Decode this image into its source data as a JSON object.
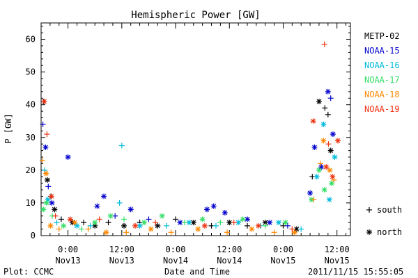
{
  "chart_data": {
    "type": "scatter",
    "title": "Hemispheric Power [GW]",
    "ylabel": "P [GW]",
    "xlabel": "Date and Time",
    "footer_left": "Plot: CCMC",
    "footer_right": "2011/11/15 15:55:05",
    "ylim": [
      0,
      65
    ],
    "yticks": [
      "0",
      "10",
      "20",
      "30",
      "40",
      "50",
      "60"
    ],
    "xlim": [
      -6,
      63
    ],
    "xticks": [
      {
        "t": 0,
        "top": "0:00",
        "bottom": "Nov13"
      },
      {
        "t": 12,
        "top": "12:00",
        "bottom": "Nov13"
      },
      {
        "t": 24,
        "top": "0:00",
        "bottom": "Nov14"
      },
      {
        "t": 36,
        "top": "12:00",
        "bottom": "Nov14"
      },
      {
        "t": 48,
        "top": "0:00",
        "bottom": "Nov15"
      },
      {
        "t": 60,
        "top": "12:00",
        "bottom": "Nov15"
      }
    ],
    "x_unit": "hours since 2011-11-13 00:00 UT",
    "marker_legend": [
      {
        "symbol": "+",
        "label": "south"
      },
      {
        "symbol": "*",
        "label": "north"
      }
    ],
    "series": [
      {
        "name": "METP-02",
        "color": "#000000",
        "points": [
          {
            "x": -5.4,
            "y": 41,
            "m": "+"
          },
          {
            "x": -4.6,
            "y": 17,
            "m": "*"
          },
          {
            "x": -3.8,
            "y": 12,
            "m": "+"
          },
          {
            "x": -3.0,
            "y": 8,
            "m": "*"
          },
          {
            "x": -1.5,
            "y": 5,
            "m": "+"
          },
          {
            "x": 1.0,
            "y": 4,
            "m": "*"
          },
          {
            "x": 3.5,
            "y": 4,
            "m": "+"
          },
          {
            "x": 6.0,
            "y": 3,
            "m": "*"
          },
          {
            "x": 9.0,
            "y": 4,
            "m": "+"
          },
          {
            "x": 12.5,
            "y": 3,
            "m": "*"
          },
          {
            "x": 16.0,
            "y": 4,
            "m": "+"
          },
          {
            "x": 20.0,
            "y": 3,
            "m": "*"
          },
          {
            "x": 24.0,
            "y": 5,
            "m": "+"
          },
          {
            "x": 28.0,
            "y": 4,
            "m": "*"
          },
          {
            "x": 32.0,
            "y": 3,
            "m": "+"
          },
          {
            "x": 36.0,
            "y": 4,
            "m": "*"
          },
          {
            "x": 40.0,
            "y": 3,
            "m": "+"
          },
          {
            "x": 44.0,
            "y": 4,
            "m": "*"
          },
          {
            "x": 48.0,
            "y": 3,
            "m": "+"
          },
          {
            "x": 51.0,
            "y": 2,
            "m": "*"
          },
          {
            "x": 54.5,
            "y": 18,
            "m": "+"
          },
          {
            "x": 56.0,
            "y": 41,
            "m": "*"
          },
          {
            "x": 57.3,
            "y": 39,
            "m": "+"
          },
          {
            "x": 58.0,
            "y": 37,
            "m": "+"
          },
          {
            "x": 58.6,
            "y": 26,
            "m": "*"
          }
        ]
      },
      {
        "name": "NOAA-15",
        "color": "#0000cc",
        "points": [
          {
            "x": -5.6,
            "y": 34,
            "m": "+"
          },
          {
            "x": -5.0,
            "y": 27,
            "m": "*"
          },
          {
            "x": -4.4,
            "y": 15,
            "m": "+"
          },
          {
            "x": -3.6,
            "y": 10,
            "m": "*"
          },
          {
            "x": 0.0,
            "y": 24,
            "m": "*"
          },
          {
            "x": 6.5,
            "y": 9,
            "m": "*"
          },
          {
            "x": 8.0,
            "y": 12,
            "m": "*"
          },
          {
            "x": 10.5,
            "y": 6,
            "m": "+"
          },
          {
            "x": 14.0,
            "y": 8,
            "m": "*"
          },
          {
            "x": 18.0,
            "y": 5,
            "m": "+"
          },
          {
            "x": 25.0,
            "y": 4,
            "m": "*"
          },
          {
            "x": 31.0,
            "y": 8,
            "m": "*"
          },
          {
            "x": 32.5,
            "y": 9,
            "m": "*"
          },
          {
            "x": 35.0,
            "y": 7,
            "m": "*"
          },
          {
            "x": 40.0,
            "y": 5,
            "m": "*"
          },
          {
            "x": 45.0,
            "y": 4,
            "m": "*"
          },
          {
            "x": 49.0,
            "y": 3,
            "m": "+"
          },
          {
            "x": 54.0,
            "y": 13,
            "m": "*"
          },
          {
            "x": 55.0,
            "y": 27,
            "m": "*"
          },
          {
            "x": 56.5,
            "y": 21,
            "m": "*"
          },
          {
            "x": 58.0,
            "y": 44,
            "m": "*"
          },
          {
            "x": 58.6,
            "y": 42,
            "m": "+"
          },
          {
            "x": 59.1,
            "y": 31,
            "m": "*"
          }
        ]
      },
      {
        "name": "NOAA-16",
        "color": "#00bbdd",
        "points": [
          {
            "x": -5.2,
            "y": 20,
            "m": "+"
          },
          {
            "x": -4.5,
            "y": 11,
            "m": "*"
          },
          {
            "x": -2.5,
            "y": 4,
            "m": "+"
          },
          {
            "x": 2.0,
            "y": 3,
            "m": "*"
          },
          {
            "x": 5.0,
            "y": 3,
            "m": "+"
          },
          {
            "x": 12.0,
            "y": 27.5,
            "m": "+"
          },
          {
            "x": 11.5,
            "y": 10,
            "m": "+"
          },
          {
            "x": 16.0,
            "y": 3,
            "m": "*"
          },
          {
            "x": 22.0,
            "y": 3,
            "m": "+"
          },
          {
            "x": 27.0,
            "y": 4,
            "m": "*"
          },
          {
            "x": 33.0,
            "y": 3,
            "m": "+"
          },
          {
            "x": 38.0,
            "y": 4,
            "m": "*"
          },
          {
            "x": 43.0,
            "y": 3,
            "m": "+"
          },
          {
            "x": 47.0,
            "y": 4,
            "m": "*"
          },
          {
            "x": 52.0,
            "y": 2,
            "m": "+"
          },
          {
            "x": 55.5,
            "y": 18,
            "m": "*"
          },
          {
            "x": 57.0,
            "y": 34,
            "m": "*"
          },
          {
            "x": 58.3,
            "y": 11,
            "m": "*"
          },
          {
            "x": 59.5,
            "y": 24,
            "m": "*"
          }
        ]
      },
      {
        "name": "NOAA-17",
        "color": "#33dd66",
        "points": [
          {
            "x": -5.5,
            "y": 8,
            "m": "*"
          },
          {
            "x": -4.8,
            "y": 10,
            "m": "*"
          },
          {
            "x": -3.5,
            "y": 6,
            "m": "+"
          },
          {
            "x": -1.0,
            "y": 3,
            "m": "*"
          },
          {
            "x": 3.0,
            "y": 2,
            "m": "+"
          },
          {
            "x": 6.0,
            "y": 4,
            "m": "*"
          },
          {
            "x": 9.5,
            "y": 6,
            "m": "*"
          },
          {
            "x": 12.5,
            "y": 5,
            "m": "+"
          },
          {
            "x": 17.0,
            "y": 4,
            "m": "*"
          },
          {
            "x": 21.0,
            "y": 6,
            "m": "*"
          },
          {
            "x": 26.0,
            "y": 4,
            "m": "+"
          },
          {
            "x": 30.0,
            "y": 5,
            "m": "*"
          },
          {
            "x": 34.0,
            "y": 4,
            "m": "+"
          },
          {
            "x": 39.0,
            "y": 5,
            "m": "*"
          },
          {
            "x": 44.0,
            "y": 3,
            "m": "+"
          },
          {
            "x": 48.5,
            "y": 4,
            "m": "*"
          },
          {
            "x": 54.3,
            "y": 11,
            "m": "*"
          },
          {
            "x": 56.0,
            "y": 20,
            "m": "*"
          },
          {
            "x": 57.2,
            "y": 14,
            "m": "*"
          },
          {
            "x": 58.8,
            "y": 16,
            "m": "*"
          }
        ]
      },
      {
        "name": "NOAA-18",
        "color": "#ff8800",
        "points": [
          {
            "x": -5.7,
            "y": 23,
            "m": "+"
          },
          {
            "x": -4.9,
            "y": 19,
            "m": "*"
          },
          {
            "x": -3.9,
            "y": 3,
            "m": "*"
          },
          {
            "x": -2.0,
            "y": 2,
            "m": "+"
          },
          {
            "x": 1.5,
            "y": 4,
            "m": "*"
          },
          {
            "x": 4.5,
            "y": 2,
            "m": "+"
          },
          {
            "x": 8.5,
            "y": 1,
            "m": "*"
          },
          {
            "x": 13.0,
            "y": 1,
            "m": "+"
          },
          {
            "x": 18.5,
            "y": 2,
            "m": "*"
          },
          {
            "x": 23.0,
            "y": 1,
            "m": "+"
          },
          {
            "x": 29.0,
            "y": 2,
            "m": "*"
          },
          {
            "x": 35.5,
            "y": 1,
            "m": "+"
          },
          {
            "x": 41.0,
            "y": 2,
            "m": "*"
          },
          {
            "x": 46.0,
            "y": 1,
            "m": "+"
          },
          {
            "x": 50.5,
            "y": 1,
            "m": "*"
          },
          {
            "x": 54.8,
            "y": 11,
            "m": "+"
          },
          {
            "x": 56.3,
            "y": 22,
            "m": "+"
          },
          {
            "x": 57.0,
            "y": 29,
            "m": "*"
          },
          {
            "x": 58.4,
            "y": 20,
            "m": "*"
          },
          {
            "x": 59.3,
            "y": 17,
            "m": "+"
          }
        ]
      },
      {
        "name": "NOAA-19",
        "color": "#ee3311",
        "points": [
          {
            "x": -5.3,
            "y": 41,
            "m": "*"
          },
          {
            "x": -4.7,
            "y": 31,
            "m": "+"
          },
          {
            "x": -3.7,
            "y": 12,
            "m": "*"
          },
          {
            "x": -2.8,
            "y": 6,
            "m": "+"
          },
          {
            "x": 0.5,
            "y": 5,
            "m": "*"
          },
          {
            "x": 7.0,
            "y": 5,
            "m": "+"
          },
          {
            "x": 15.0,
            "y": 3,
            "m": "*"
          },
          {
            "x": 19.5,
            "y": 4,
            "m": "+"
          },
          {
            "x": 30.5,
            "y": 3,
            "m": "*"
          },
          {
            "x": 37.0,
            "y": 4,
            "m": "+"
          },
          {
            "x": 42.5,
            "y": 3,
            "m": "*"
          },
          {
            "x": 50.0,
            "y": 2,
            "m": "+"
          },
          {
            "x": 54.7,
            "y": 35,
            "m": "*"
          },
          {
            "x": 57.2,
            "y": 58.5,
            "m": "+"
          },
          {
            "x": 57.6,
            "y": 21,
            "m": "*"
          },
          {
            "x": 58.1,
            "y": 28,
            "m": "+"
          },
          {
            "x": 59.0,
            "y": 18,
            "m": "*"
          },
          {
            "x": 60.2,
            "y": 29,
            "m": "*"
          }
        ]
      }
    ]
  }
}
